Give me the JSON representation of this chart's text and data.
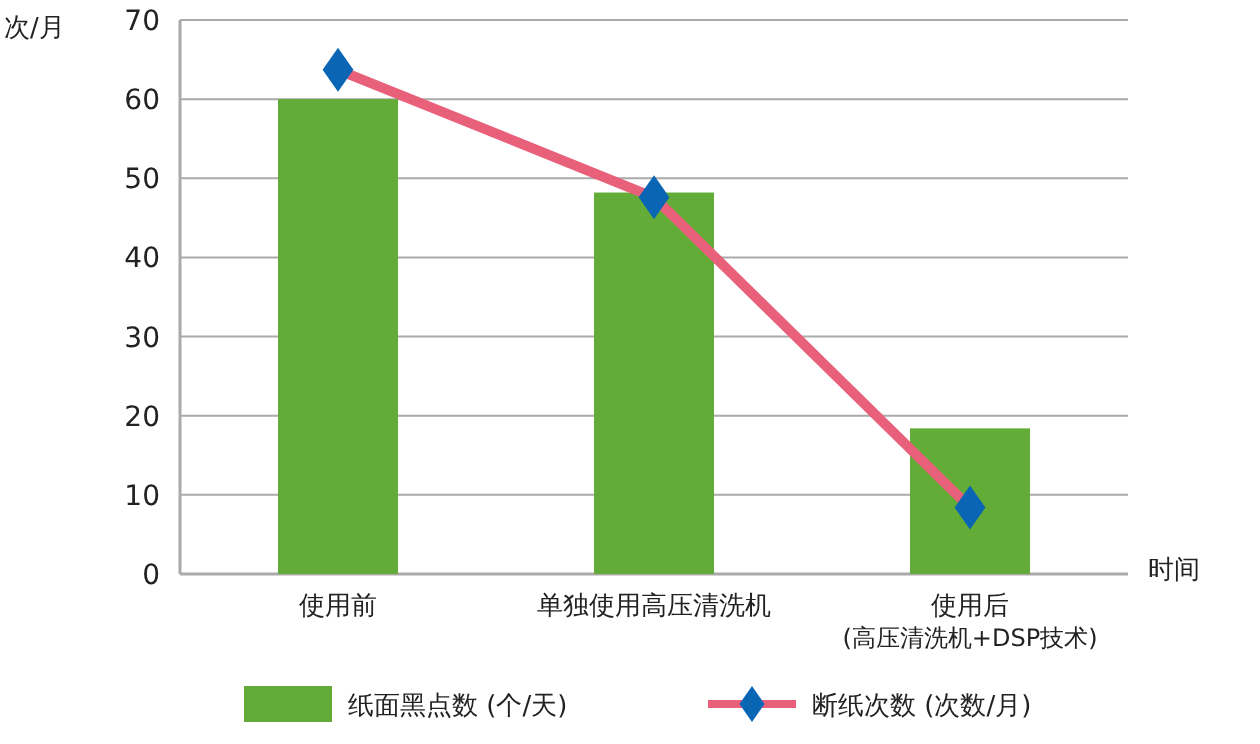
{
  "chart_data": {
    "type": "bar",
    "ylabel": "次/月",
    "xlabel": "时间",
    "categories": [
      "使用前",
      "单独使用高压清洗机",
      "使用后\n(高压清洗机+DSP技术)"
    ],
    "series": [
      {
        "name": "纸面黑点数 (个/天)",
        "color": "#62ac37",
        "values": [
          60,
          48.2,
          18.4
        ]
      },
      {
        "name": "断纸次数 (次数/月)",
        "type": "line",
        "color": "#e8607a",
        "colors": [
          "#0a66b5",
          "#0a66b5",
          "#0a66b5"
        ],
        "marker": "diamond",
        "values": [
          63.7,
          47.6,
          8.4
        ]
      }
    ],
    "ylim": [
      0,
      70
    ],
    "yticks": [
      0,
      10,
      20,
      30,
      40,
      50,
      60,
      70
    ],
    "grid": "y",
    "legend": "bottom"
  }
}
